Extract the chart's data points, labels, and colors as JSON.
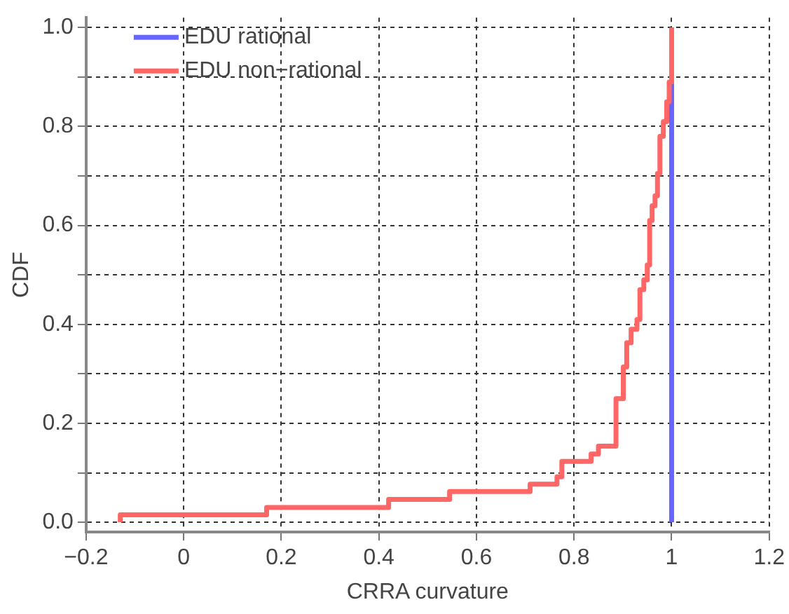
{
  "chart_data": {
    "type": "step",
    "xlabel": "CRRA curvature",
    "ylabel": "CDF",
    "xlim": [
      -0.2,
      1.2
    ],
    "ylim": [
      -0.02,
      1.02
    ],
    "xticks": [
      {
        "value": -0.2,
        "label": "−0.2"
      },
      0,
      0.2,
      0.4,
      0.6,
      0.8,
      1,
      1.2
    ],
    "yticks": [
      {
        "value": 0,
        "label": "0.0"
      },
      {
        "value": 0.1,
        "label": null
      },
      {
        "value": 0.2,
        "label": "0.2"
      },
      {
        "value": 0.3,
        "label": null
      },
      {
        "value": 0.4,
        "label": "0.4"
      },
      {
        "value": 0.5,
        "label": null
      },
      {
        "value": 0.6,
        "label": "0.6"
      },
      {
        "value": 0.7,
        "label": null
      },
      {
        "value": 0.8,
        "label": "0.8"
      },
      {
        "value": 0.9,
        "label": null
      },
      {
        "value": 1,
        "label": "1.0"
      }
    ],
    "grid": true,
    "legend": "top left",
    "line_style": "solid",
    "marker": "none",
    "series": [
      {
        "name": "EDU rational",
        "color": "#6666ff",
        "x": [
          1,
          1
        ],
        "values": [
          0,
          1
        ]
      },
      {
        "name": "EDU non−rational",
        "color": "#ff6666",
        "x": [
          -0.13,
          -0.13,
          0.17,
          0.42,
          0.545,
          0.71,
          0.765,
          0.775,
          0.835,
          0.85,
          0.886,
          0.901,
          0.908,
          0.917,
          0.929,
          0.935,
          0.943,
          0.95,
          0.955,
          0.96,
          0.966,
          0.971,
          0.976,
          0.983,
          0.99,
          0.995,
          1
        ],
        "values": [
          0,
          0.015,
          0.03,
          0.046,
          0.062,
          0.077,
          0.092,
          0.123,
          0.138,
          0.154,
          0.25,
          0.314,
          0.363,
          0.39,
          0.41,
          0.47,
          0.49,
          0.52,
          0.61,
          0.64,
          0.66,
          0.705,
          0.78,
          0.81,
          0.85,
          0.89,
          1
        ]
      }
    ]
  }
}
